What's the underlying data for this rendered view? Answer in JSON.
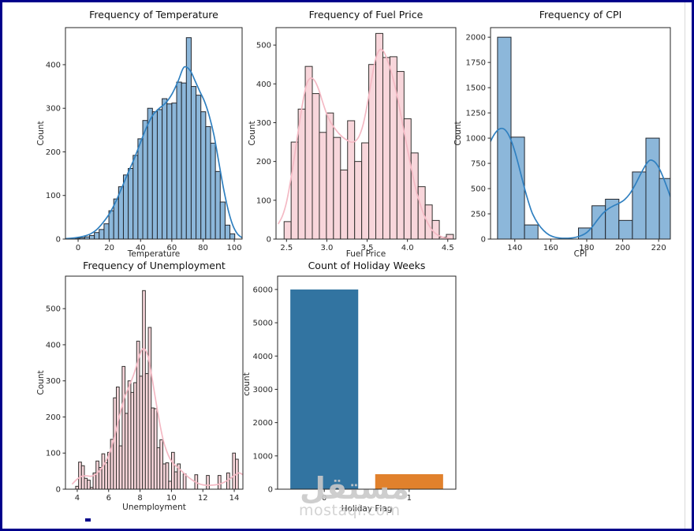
{
  "figure": {
    "border_color": "#00008b",
    "background": "#ffffff"
  },
  "watermark": {
    "arabic": "مستقل",
    "domain": "mostaql.com",
    "color": "#c9c9c9"
  },
  "chart_data": [
    {
      "type": "histogram",
      "title": "Frequency of Temperature",
      "xlabel": "Temperature",
      "ylabel": "Count",
      "xlim": [
        -8.1,
        105
      ],
      "ylim": [
        0,
        485
      ],
      "xticks": [
        0,
        20,
        40,
        60,
        80,
        100
      ],
      "xtick_labels": [
        "0",
        "20",
        "40",
        "60",
        "80",
        "100"
      ],
      "yticks": [
        0,
        100,
        200,
        300,
        400
      ],
      "ytick_labels": [
        "0",
        "100",
        "200",
        "300",
        "400"
      ],
      "bin_start": -2,
      "bin_width": 3.1,
      "counts": [
        2,
        3,
        5,
        8,
        15,
        22,
        35,
        65,
        92,
        120,
        147,
        162,
        192,
        230,
        272,
        300,
        292,
        297,
        322,
        310,
        312,
        360,
        358,
        462,
        350,
        330,
        292,
        258,
        220,
        155,
        85,
        32,
        12
      ],
      "bar_fill": "#8cb7da",
      "bar_edge": "#23272e",
      "kde": {
        "color": "#3080c0",
        "x": [
          -8,
          -4,
          0,
          4,
          8,
          12,
          16,
          20,
          24,
          28,
          32,
          36,
          40,
          44,
          48,
          52,
          56,
          60,
          64,
          67,
          69,
          72,
          75,
          78,
          81,
          84,
          87,
          90,
          93,
          96,
          99,
          102,
          105
        ],
        "y": [
          1,
          2,
          4,
          7,
          12,
          22,
          38,
          58,
          85,
          118,
          152,
          185,
          222,
          258,
          285,
          300,
          312,
          332,
          362,
          390,
          395,
          385,
          362,
          338,
          315,
          282,
          238,
          178,
          118,
          68,
          32,
          12,
          3
        ]
      }
    },
    {
      "type": "histogram",
      "title": "Frequency of Fuel Price",
      "xlabel": "Fuel Price",
      "ylabel": "Count",
      "xlim": [
        2.37,
        4.6
      ],
      "ylim": [
        0,
        545
      ],
      "xticks": [
        2.5,
        3.0,
        3.5,
        4.0,
        4.5
      ],
      "xtick_labels": [
        "2.5",
        "3.0",
        "3.5",
        "4.0",
        "4.5"
      ],
      "yticks": [
        0,
        100,
        200,
        300,
        400,
        500
      ],
      "ytick_labels": [
        "0",
        "100",
        "200",
        "300",
        "400",
        "500"
      ],
      "bin_start": 2.47,
      "bin_width": 0.0875,
      "counts": [
        45,
        250,
        335,
        445,
        375,
        275,
        325,
        262,
        178,
        305,
        200,
        248,
        450,
        530,
        468,
        470,
        432,
        310,
        222,
        135,
        88,
        48,
        5,
        12
      ],
      "bar_fill": "#f8d6db",
      "bar_edge": "#33312f",
      "kde": {
        "color": "#f4b9c4",
        "x": [
          2.4,
          2.45,
          2.5,
          2.55,
          2.6,
          2.65,
          2.7,
          2.75,
          2.8,
          2.85,
          2.9,
          2.95,
          3.0,
          3.05,
          3.1,
          3.15,
          3.2,
          3.25,
          3.3,
          3.35,
          3.4,
          3.45,
          3.5,
          3.55,
          3.6,
          3.65,
          3.7,
          3.75,
          3.8,
          3.85,
          3.9,
          3.95,
          4.0,
          4.05,
          4.1,
          4.15,
          4.2,
          4.25,
          4.3,
          4.35,
          4.4,
          4.45,
          4.5,
          4.55
        ],
        "y": [
          40,
          60,
          95,
          150,
          215,
          285,
          350,
          400,
          415,
          408,
          385,
          352,
          322,
          300,
          285,
          272,
          262,
          255,
          250,
          252,
          265,
          295,
          345,
          405,
          460,
          487,
          485,
          462,
          430,
          390,
          340,
          285,
          232,
          180,
          132,
          95,
          65,
          42,
          25,
          14,
          8,
          4,
          2,
          1
        ]
      }
    },
    {
      "type": "histogram",
      "title": "Frequency of CPI",
      "xlabel": "CPI",
      "ylabel": "Count",
      "xlim": [
        126.5,
        226.5
      ],
      "ylim": [
        0,
        2095
      ],
      "xticks": [
        140,
        160,
        180,
        200,
        220
      ],
      "xtick_labels": [
        "140",
        "160",
        "180",
        "200",
        "220"
      ],
      "yticks": [
        0,
        250,
        500,
        750,
        1000,
        1250,
        1500,
        1750,
        2000
      ],
      "ytick_labels": [
        "0",
        "250",
        "500",
        "750",
        "1000",
        "1250",
        "1500",
        "1750",
        "2000"
      ],
      "bin_start": 130.4,
      "bin_width": 7.5,
      "counts": [
        2000,
        1010,
        140,
        0,
        0,
        0,
        110,
        330,
        395,
        185,
        665,
        1000,
        600
      ],
      "bar_fill": "#8cb7da",
      "bar_edge": "#23272e",
      "kde": {
        "color": "#3080c0",
        "x": [
          122,
          124,
          126,
          128,
          130,
          132,
          134,
          136,
          138,
          140,
          142,
          144,
          146,
          148,
          150,
          153,
          156,
          159,
          162,
          165,
          168,
          171,
          174,
          177,
          180,
          183,
          186,
          189,
          192,
          195,
          198,
          201,
          204,
          207,
          210,
          213,
          215,
          217,
          219,
          221,
          223,
          225,
          226.5
        ],
        "y": [
          830,
          880,
          950,
          1020,
          1070,
          1095,
          1090,
          1050,
          975,
          870,
          740,
          600,
          465,
          345,
          245,
          150,
          85,
          42,
          20,
          10,
          8,
          10,
          18,
          35,
          65,
          120,
          190,
          255,
          300,
          330,
          355,
          390,
          450,
          540,
          645,
          740,
          780,
          775,
          740,
          675,
          590,
          495,
          420
        ]
      }
    },
    {
      "type": "histogram",
      "title": "Frequency of Unemployment",
      "xlabel": "Unemployment",
      "ylabel": "Count",
      "xlim": [
        3.25,
        14.55
      ],
      "ylim": [
        0,
        590
      ],
      "xticks": [
        4,
        6,
        8,
        10,
        12,
        14
      ],
      "xtick_labels": [
        "4",
        "6",
        "8",
        "10",
        "12",
        "14"
      ],
      "yticks": [
        0,
        100,
        200,
        300,
        400,
        500
      ],
      "ytick_labels": [
        "0",
        "100",
        "200",
        "300",
        "400",
        "500"
      ],
      "bin_start": 3.9,
      "bin_width": 0.185,
      "counts": [
        8,
        75,
        65,
        30,
        25,
        5,
        45,
        78,
        60,
        98,
        73,
        102,
        138,
        253,
        283,
        120,
        340,
        210,
        300,
        268,
        295,
        410,
        313,
        550,
        320,
        448,
        225,
        223,
        115,
        137,
        70,
        73,
        22,
        102,
        48,
        70,
        0,
        42,
        0,
        0,
        0,
        40,
        0,
        0,
        0,
        38,
        0,
        0,
        0,
        38,
        0,
        0,
        45,
        0,
        100,
        83
      ],
      "bar_fill": "#f8d6db",
      "bar_edge": "#33312f",
      "kde": {
        "color": "#f4b9c4",
        "x": [
          3.7,
          4.0,
          4.3,
          4.6,
          4.9,
          5.2,
          5.5,
          5.8,
          6.1,
          6.4,
          6.7,
          7.0,
          7.3,
          7.6,
          7.9,
          8.1,
          8.3,
          8.5,
          8.7,
          8.9,
          9.1,
          9.3,
          9.5,
          9.7,
          9.9,
          10.1,
          10.4,
          10.7,
          11.0,
          11.3,
          11.6,
          11.9,
          12.2,
          12.5,
          12.8,
          13.1,
          13.4,
          13.7,
          14.0,
          14.3,
          14.55
        ],
        "y": [
          15,
          28,
          36,
          37,
          36,
          42,
          55,
          75,
          105,
          150,
          205,
          252,
          285,
          318,
          360,
          385,
          388,
          368,
          325,
          272,
          220,
          172,
          132,
          105,
          85,
          72,
          60,
          48,
          36,
          26,
          18,
          13,
          11,
          11,
          12,
          15,
          20,
          28,
          38,
          45,
          40
        ]
      }
    },
    {
      "type": "bar",
      "title": "Count of Holiday Weeks",
      "xlabel": "Holiday Flag",
      "ylabel": "count",
      "categories": [
        "0",
        "1"
      ],
      "values": [
        6000,
        450
      ],
      "colors": [
        "#3274a1",
        "#e1812c"
      ],
      "ylim": [
        0,
        6400
      ],
      "yticks": [
        0,
        1000,
        2000,
        3000,
        4000,
        5000,
        6000
      ],
      "ytick_labels": [
        "0",
        "1000",
        "2000",
        "3000",
        "4000",
        "5000",
        "6000"
      ]
    }
  ]
}
